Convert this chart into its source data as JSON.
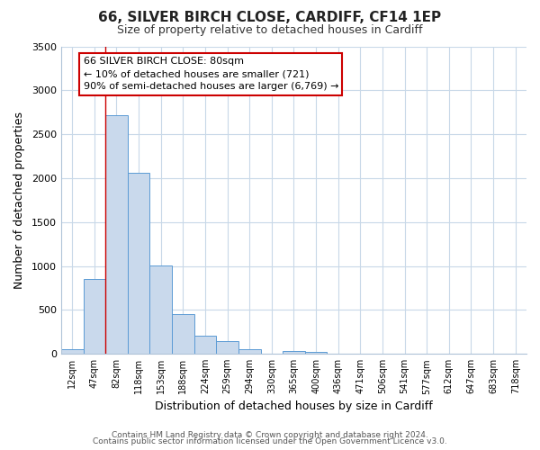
{
  "title": "66, SILVER BIRCH CLOSE, CARDIFF, CF14 1EP",
  "subtitle": "Size of property relative to detached houses in Cardiff",
  "bar_labels": [
    "12sqm",
    "47sqm",
    "82sqm",
    "118sqm",
    "153sqm",
    "188sqm",
    "224sqm",
    "259sqm",
    "294sqm",
    "330sqm",
    "365sqm",
    "400sqm",
    "436sqm",
    "471sqm",
    "506sqm",
    "541sqm",
    "577sqm",
    "612sqm",
    "647sqm",
    "683sqm",
    "718sqm"
  ],
  "bar_values": [
    55,
    850,
    2720,
    2060,
    1010,
    455,
    210,
    145,
    55,
    0,
    30,
    20,
    0,
    0,
    0,
    0,
    0,
    0,
    0,
    0,
    0
  ],
  "bar_color": "#c9d9ec",
  "bar_edge_color": "#5b9bd5",
  "property_line_index": 2,
  "property_line_color": "#cc0000",
  "xlabel": "Distribution of detached houses by size in Cardiff",
  "ylabel": "Number of detached properties",
  "ylim": [
    0,
    3500
  ],
  "yticks": [
    0,
    500,
    1000,
    1500,
    2000,
    2500,
    3000,
    3500
  ],
  "annotation_title": "66 SILVER BIRCH CLOSE: 80sqm",
  "annotation_line1": "← 10% of detached houses are smaller (721)",
  "annotation_line2": "90% of semi-detached houses are larger (6,769) →",
  "annotation_box_color": "#cc0000",
  "footer_line1": "Contains HM Land Registry data © Crown copyright and database right 2024.",
  "footer_line2": "Contains public sector information licensed under the Open Government Licence v3.0.",
  "background_color": "#ffffff",
  "grid_color": "#c8d8e8"
}
